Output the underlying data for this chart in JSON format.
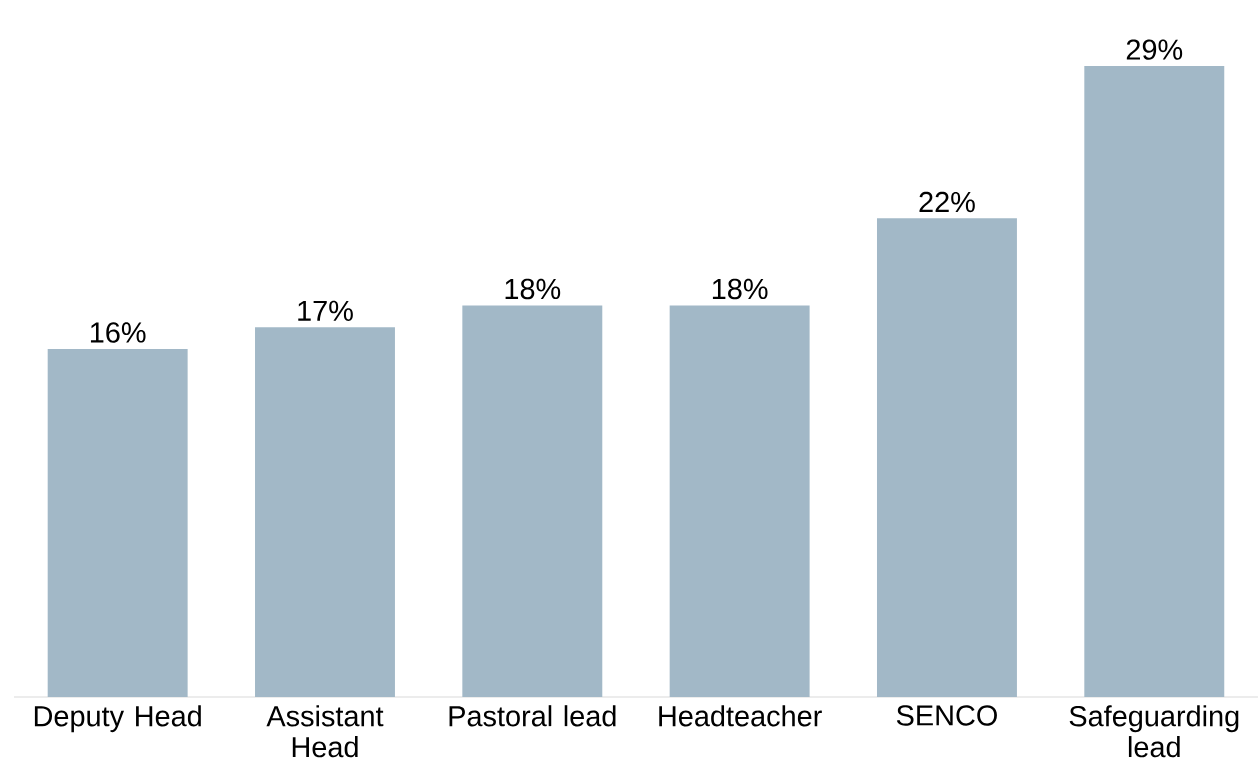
{
  "chart_data": {
    "type": "bar",
    "categories": [
      "Deputy Head",
      "Assistant Head",
      "Pastoral lead",
      "Headteacher",
      "SENCO",
      "Safeguarding lead"
    ],
    "values": [
      16,
      17,
      18,
      18,
      22,
      29
    ],
    "value_labels": [
      "16%",
      "17%",
      "18%",
      "18%",
      "22%",
      "29%"
    ],
    "color": "#a2b8c7"
  }
}
